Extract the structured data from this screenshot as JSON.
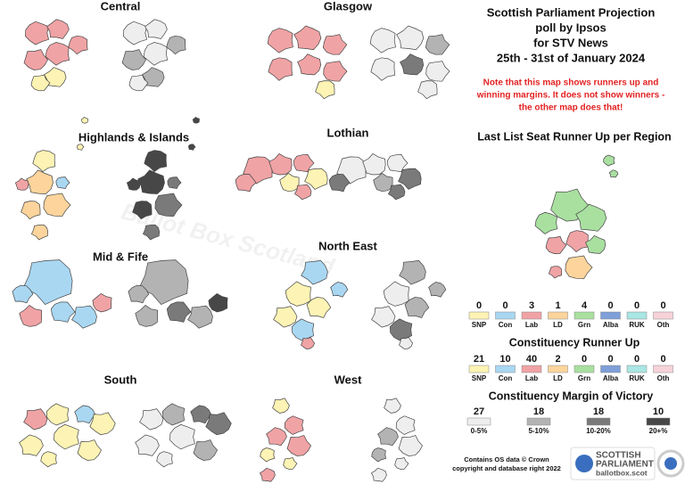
{
  "title": [
    "Scottish Parliament Projection",
    "poll by Ipsos",
    "for STV News",
    "25th - 31st of January 2024"
  ],
  "note": [
    "Note that this map shows runners up and",
    "winning margins. It does not show winners -",
    "the other map does that!"
  ],
  "watermark": "Ballot Box Scotland",
  "regions": [
    "Central",
    "Glasgow",
    "Highlands & Islands",
    "Lothian",
    "Mid & Fife",
    "North East",
    "South",
    "West"
  ],
  "parties": [
    {
      "name": "SNP",
      "color": "#fdf3b4"
    },
    {
      "name": "Con",
      "color": "#a9d7f2"
    },
    {
      "name": "Lab",
      "color": "#f0a3a5"
    },
    {
      "name": "LD",
      "color": "#fcd49c"
    },
    {
      "name": "Grn",
      "color": "#a9e0a0"
    },
    {
      "name": "Alba",
      "color": "#7e9fd8"
    },
    {
      "name": "RUK",
      "color": "#a9e6e4"
    },
    {
      "name": "Oth",
      "color": "#f7d2d9"
    }
  ],
  "list_runner_up": {
    "title": "Last List Seat Runner Up per Region",
    "counts": [
      0,
      0,
      3,
      1,
      4,
      0,
      0,
      0
    ]
  },
  "constituency_runner_up": {
    "title": "Constituency Runner Up",
    "counts": [
      21,
      10,
      40,
      2,
      0,
      0,
      0,
      0
    ]
  },
  "margin_of_victory": {
    "title": "Constituency Margin of Victory",
    "bands": [
      {
        "label": "0-5%",
        "count": 27,
        "color": "#eeeeee"
      },
      {
        "label": "5-10%",
        "count": 18,
        "color": "#b3b3b3"
      },
      {
        "label": "10-20%",
        "count": 18,
        "color": "#7a7a7a"
      },
      {
        "label": "20+%",
        "count": 10,
        "color": "#474747"
      }
    ]
  },
  "source": [
    "Contains OS data © Crown",
    "copyright and database right 2022"
  ],
  "logo": {
    "line1": "SCOTTISH",
    "line2": "PARLIAMENT",
    "url": "ballotbox.scot"
  }
}
